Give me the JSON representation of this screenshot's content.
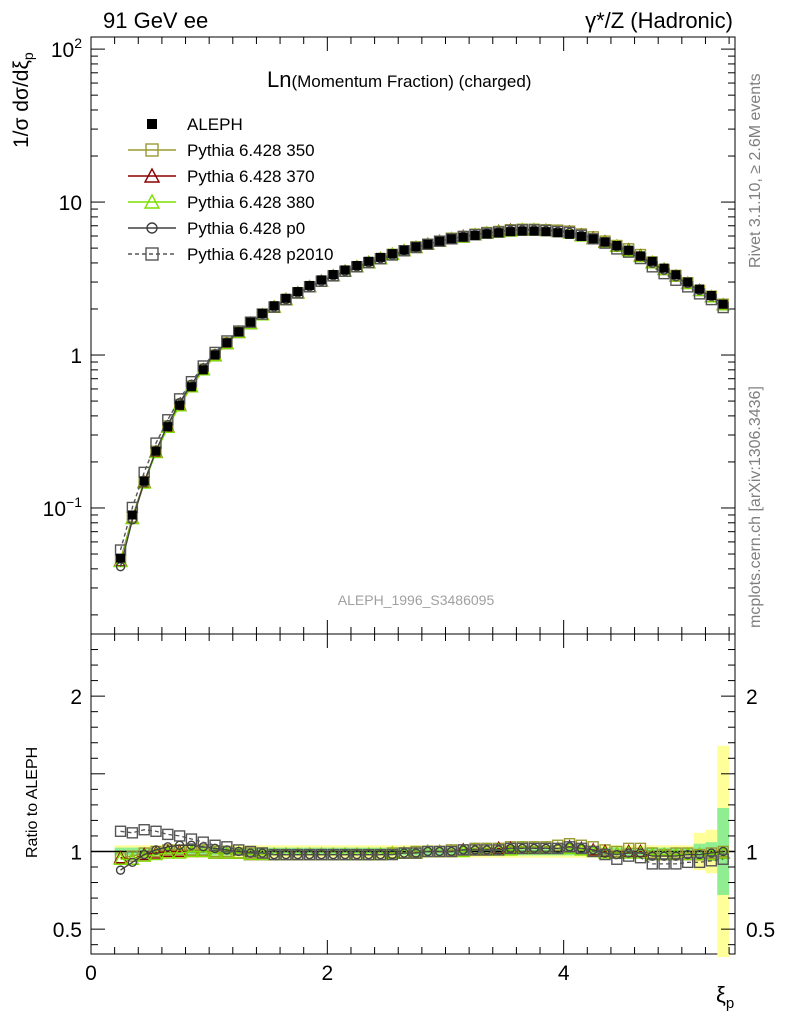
{
  "header": {
    "left": "91 GeV ee",
    "right": "γ*/Z (Hadronic)"
  },
  "side_text": {
    "rivet": "Rivet 3.1.10, ≥ 2.6M events",
    "mcplots": "mcplots.cern.ch [arXiv:1306.3436]"
  },
  "chart_data": [
    {
      "type": "scatter",
      "title_main": "Ln",
      "title_sub": "(Momentum Fraction) (charged)",
      "watermark": "ALEPH_1996_S3486095",
      "ylabel": "1/σ dσ/dξ",
      "ylabel_sub": "p",
      "yscale": "log",
      "ylim": [
        0.015,
        120
      ],
      "xlim": [
        0,
        5.45
      ],
      "y_ticks": [
        {
          "value": 0.1,
          "label": "10",
          "sup": "−1"
        },
        {
          "value": 1,
          "label": "1",
          "sup": ""
        },
        {
          "value": 10,
          "label": "10",
          "sup": ""
        },
        {
          "value": 100,
          "label": "10",
          "sup": "2"
        }
      ],
      "x": [
        0.25,
        0.35,
        0.45,
        0.55,
        0.65,
        0.75,
        0.85,
        0.95,
        1.05,
        1.15,
        1.25,
        1.35,
        1.45,
        1.55,
        1.65,
        1.75,
        1.85,
        1.95,
        2.05,
        2.15,
        2.25,
        2.35,
        2.45,
        2.55,
        2.65,
        2.75,
        2.85,
        2.95,
        3.05,
        3.15,
        3.25,
        3.35,
        3.45,
        3.55,
        3.65,
        3.75,
        3.85,
        3.95,
        4.05,
        4.15,
        4.25,
        4.35,
        4.45,
        4.55,
        4.65,
        4.75,
        4.85,
        4.95,
        5.05,
        5.15,
        5.25,
        5.35
      ],
      "series": [
        {
          "name": "ALEPH",
          "marker": "filled-square",
          "color": "#000000",
          "values": [
            0.047,
            0.09,
            0.15,
            0.235,
            0.34,
            0.47,
            0.62,
            0.8,
            1.0,
            1.2,
            1.42,
            1.64,
            1.87,
            2.1,
            2.35,
            2.6,
            2.85,
            3.1,
            3.36,
            3.6,
            3.85,
            4.1,
            4.35,
            4.6,
            4.85,
            5.1,
            5.3,
            5.55,
            5.75,
            5.9,
            6.05,
            6.2,
            6.3,
            6.4,
            6.45,
            6.45,
            6.4,
            6.3,
            6.15,
            5.95,
            5.75,
            5.5,
            5.2,
            4.85,
            4.45,
            4.1,
            3.7,
            3.35,
            3.0,
            2.7,
            2.45,
            2.15
          ]
        },
        {
          "name": "Pythia 6.428 350",
          "marker": "open-square",
          "color": "#9a9a33",
          "ratio": [
            0.96,
            0.97,
            0.99,
            1.0,
            1.01,
            1.01,
            1.01,
            1.01,
            1.0,
            1.0,
            0.99,
            0.99,
            0.99,
            0.98,
            0.98,
            0.98,
            0.98,
            0.98,
            0.98,
            0.98,
            0.98,
            0.98,
            0.98,
            0.99,
            0.99,
            1.0,
            1.0,
            1.0,
            1.01,
            1.01,
            1.02,
            1.02,
            1.02,
            1.03,
            1.03,
            1.03,
            1.03,
            1.04,
            1.05,
            1.04,
            1.03,
            1.01,
            1.0,
            1.02,
            1.02,
            0.99,
            0.98,
            0.99,
            0.99,
            0.98,
            0.99,
            1.0
          ]
        },
        {
          "name": "Pythia 6.428 370",
          "marker": "open-triangle",
          "color": "#8b0000",
          "ratio": [
            0.96,
            0.95,
            0.98,
            0.99,
            1.0,
            1.0,
            1.0,
            1.0,
            0.99,
            0.99,
            0.99,
            0.98,
            0.98,
            0.98,
            0.98,
            0.98,
            0.98,
            0.98,
            0.98,
            0.98,
            0.98,
            0.98,
            0.98,
            0.99,
            0.99,
            0.99,
            1.0,
            1.0,
            1.0,
            1.01,
            1.01,
            1.01,
            1.02,
            1.02,
            1.02,
            1.02,
            1.02,
            1.02,
            1.03,
            1.02,
            1.01,
            1.0,
            0.99,
            1.0,
            1.0,
            0.98,
            0.98,
            0.98,
            0.98,
            0.98,
            0.98,
            0.99
          ]
        },
        {
          "name": "Pythia 6.428 380",
          "marker": "open-triangle",
          "color": "#7fdd00",
          "ratio": [
            0.95,
            0.95,
            0.97,
            0.98,
            0.99,
            0.99,
            1.0,
            1.0,
            0.99,
            0.99,
            0.99,
            0.98,
            0.98,
            0.98,
            0.98,
            0.98,
            0.98,
            0.98,
            0.98,
            0.98,
            0.98,
            0.98,
            0.98,
            0.99,
            0.99,
            0.99,
            1.0,
            1.0,
            1.0,
            1.0,
            1.01,
            1.01,
            1.01,
            1.01,
            1.02,
            1.02,
            1.02,
            1.02,
            1.02,
            1.01,
            1.0,
            0.99,
            0.99,
            0.99,
            0.99,
            0.98,
            0.98,
            0.98,
            0.98,
            0.98,
            0.98,
            0.99
          ]
        },
        {
          "name": "Pythia 6.428 p0",
          "marker": "open-circle",
          "color": "#404040",
          "ratio": [
            0.88,
            0.93,
            0.98,
            1.01,
            1.03,
            1.04,
            1.04,
            1.03,
            1.02,
            1.01,
            1.0,
            0.99,
            0.99,
            0.98,
            0.98,
            0.98,
            0.98,
            0.98,
            0.98,
            0.98,
            0.98,
            0.98,
            0.98,
            0.98,
            0.99,
            0.99,
            1.0,
            1.0,
            1.0,
            1.01,
            1.01,
            1.01,
            1.01,
            1.02,
            1.02,
            1.02,
            1.02,
            1.02,
            1.03,
            1.02,
            1.01,
            0.99,
            0.98,
            0.99,
            0.99,
            0.97,
            0.97,
            0.97,
            0.98,
            0.98,
            0.99,
            1.0
          ]
        },
        {
          "name": "Pythia 6.428 p2010",
          "marker": "open-square-dashed",
          "color": "#555555",
          "ratio": [
            1.13,
            1.12,
            1.14,
            1.13,
            1.11,
            1.1,
            1.08,
            1.06,
            1.04,
            1.03,
            1.01,
            1.0,
            0.99,
            0.98,
            0.98,
            0.98,
            0.98,
            0.98,
            0.98,
            0.98,
            0.98,
            0.98,
            0.98,
            0.98,
            0.99,
            0.99,
            1.0,
            1.0,
            1.0,
            1.01,
            1.01,
            1.01,
            1.01,
            1.02,
            1.02,
            1.02,
            1.02,
            1.02,
            1.03,
            1.02,
            1.0,
            0.98,
            0.95,
            0.97,
            0.96,
            0.92,
            0.92,
            0.92,
            0.93,
            0.93,
            0.94,
            0.95
          ]
        }
      ],
      "legend_placement": "top-left"
    },
    {
      "type": "line",
      "ylabel": "Ratio to ALEPH",
      "xlabel": "ξ",
      "xlabel_sub": "p",
      "ylim": [
        0.34,
        2.4
      ],
      "xlim": [
        0,
        5.45
      ],
      "y_ticks": [
        {
          "value": 0.5,
          "label": "0.5"
        },
        {
          "value": 1,
          "label": "1"
        },
        {
          "value": 2,
          "label": "2"
        }
      ],
      "x_ticks": [
        {
          "value": 0,
          "label": "0"
        },
        {
          "value": 2,
          "label": "2"
        },
        {
          "value": 4,
          "label": "4"
        }
      ],
      "uncertainty_bands": {
        "stat_color": "#90ee90",
        "syst_color": "#ffff99"
      }
    }
  ]
}
